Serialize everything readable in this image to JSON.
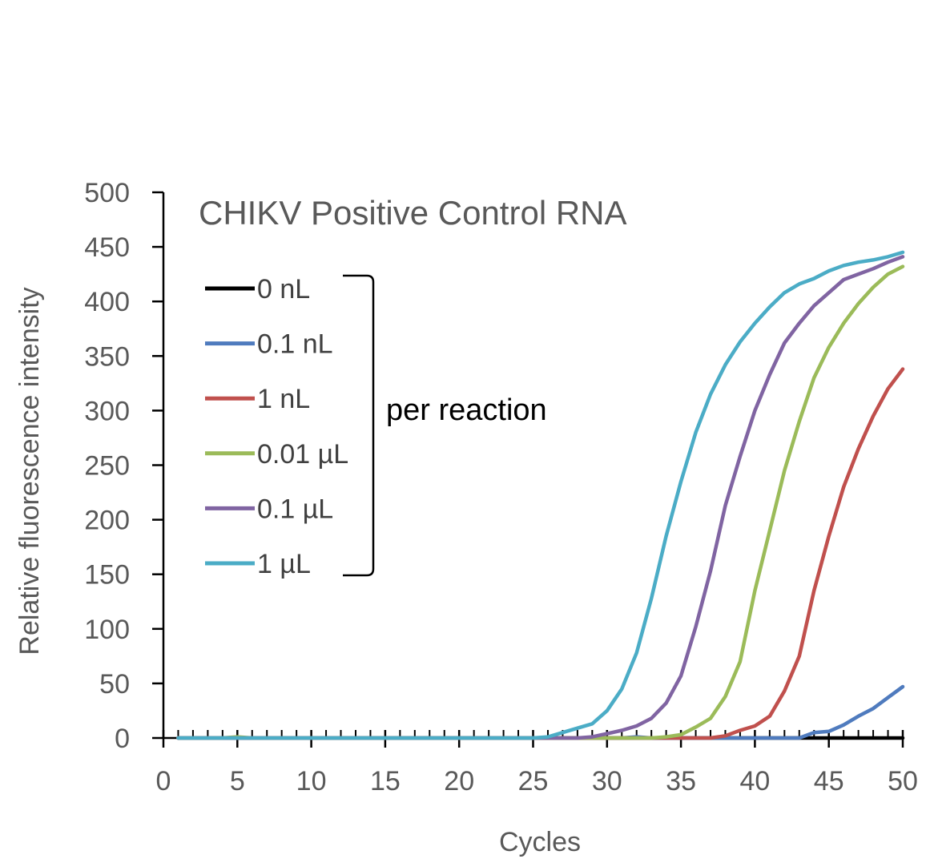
{
  "chart_data": {
    "type": "line",
    "title": "CHIKV Positive Control RNA",
    "xlabel": "Cycles",
    "ylabel": "Relative fluorescence intensity",
    "xlim": [
      0,
      50
    ],
    "ylim": [
      0,
      500
    ],
    "xticks": [
      "0",
      "5",
      "10",
      "15",
      "20",
      "25",
      "30",
      "35",
      "40",
      "45",
      "50"
    ],
    "yticks": [
      "0",
      "50",
      "100",
      "150",
      "200",
      "250",
      "300",
      "350",
      "400",
      "450",
      "500"
    ],
    "grid": false,
    "legend_position": "top-left",
    "annotation": "per reaction",
    "x": [
      1,
      2,
      3,
      4,
      5,
      6,
      7,
      8,
      9,
      10,
      11,
      12,
      13,
      14,
      15,
      16,
      17,
      18,
      19,
      20,
      21,
      22,
      23,
      24,
      25,
      26,
      27,
      28,
      29,
      30,
      31,
      32,
      33,
      34,
      35,
      36,
      37,
      38,
      39,
      40,
      41,
      42,
      43,
      44,
      45,
      46,
      47,
      48,
      49,
      50
    ],
    "series": [
      {
        "name": "0 nL",
        "color": "#000000",
        "values": [
          0,
          0,
          0,
          0,
          0,
          0,
          0,
          0,
          0,
          0,
          0,
          0,
          0,
          0,
          0,
          0,
          0,
          0,
          0,
          0,
          0,
          0,
          0,
          0,
          0,
          0,
          0,
          0,
          0,
          0,
          0,
          0,
          0,
          0,
          0,
          0,
          0,
          0,
          0,
          0,
          0,
          0,
          0,
          0,
          0,
          0,
          0,
          0,
          0,
          0
        ]
      },
      {
        "name": "0.1 nL",
        "color": "#4F7BBE",
        "values": [
          0,
          0,
          0,
          0,
          0,
          0,
          0,
          0,
          0,
          0,
          0,
          0,
          0,
          0,
          0,
          0,
          0,
          0,
          0,
          0,
          0,
          0,
          0,
          0,
          0,
          0,
          0,
          0,
          0,
          0,
          0,
          1,
          0,
          0,
          0,
          0,
          0,
          0,
          0,
          0,
          0,
          0,
          0,
          5,
          6,
          12,
          20,
          27,
          37,
          47
        ]
      },
      {
        "name": "1 nL",
        "color": "#C0504D",
        "values": [
          0,
          0,
          0,
          0,
          0,
          0,
          0,
          0,
          0,
          0,
          0,
          0,
          0,
          0,
          0,
          0,
          0,
          0,
          0,
          0,
          0,
          0,
          0,
          0,
          0,
          0,
          0,
          0,
          0,
          0,
          0,
          0,
          0,
          0,
          0,
          0,
          0,
          2,
          7,
          11,
          20,
          43,
          75,
          135,
          185,
          230,
          265,
          295,
          320,
          338
        ]
      },
      {
        "name": "0.01 µL",
        "color": "#9BBB59",
        "values": [
          0,
          0,
          0,
          0,
          1,
          0,
          0,
          0,
          0,
          0,
          0,
          0,
          0,
          0,
          0,
          0,
          0,
          0,
          0,
          0,
          0,
          0,
          0,
          0,
          0,
          0,
          0,
          0,
          0,
          0,
          0,
          0,
          0,
          1,
          3,
          10,
          18,
          38,
          70,
          135,
          190,
          245,
          290,
          330,
          358,
          380,
          398,
          413,
          425,
          432
        ]
      },
      {
        "name": "0.1 µL",
        "color": "#8064A2",
        "values": [
          0,
          0,
          0,
          0,
          0,
          0,
          0,
          0,
          0,
          0,
          0,
          0,
          0,
          0,
          0,
          0,
          0,
          0,
          0,
          0,
          0,
          0,
          0,
          0,
          0,
          0,
          0,
          0,
          1,
          4,
          7,
          11,
          18,
          32,
          57,
          102,
          153,
          213,
          258,
          300,
          333,
          362,
          380,
          396,
          408,
          420,
          425,
          430,
          436,
          441
        ]
      },
      {
        "name": "1 µL",
        "color": "#4BACC6",
        "values": [
          0,
          0,
          0,
          0,
          0,
          0,
          0,
          0,
          0,
          0,
          0,
          0,
          0,
          0,
          0,
          0,
          0,
          0,
          0,
          0,
          0,
          0,
          0,
          0,
          0,
          1,
          5,
          9,
          13,
          25,
          45,
          78,
          128,
          185,
          235,
          280,
          315,
          342,
          363,
          380,
          395,
          408,
          416,
          421,
          428,
          433,
          436,
          438,
          441,
          445
        ]
      }
    ]
  }
}
